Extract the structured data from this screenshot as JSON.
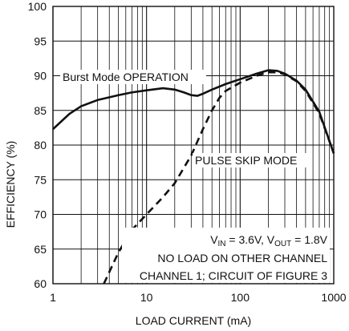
{
  "chart_data": {
    "type": "line",
    "xscale": "log",
    "xlim": [
      1,
      1000
    ],
    "ylim": [
      60,
      100
    ],
    "xticks": [
      "1",
      "10",
      "100",
      "1000"
    ],
    "yticks": [
      "60",
      "65",
      "70",
      "75",
      "80",
      "85",
      "90",
      "95",
      "100"
    ],
    "xlabel": "LOAD CURRENT (mA)",
    "ylabel": "EFFICIENCY (%)",
    "grid": true,
    "series": [
      {
        "name": "Burst Mode OPERATION",
        "style": "solid",
        "color": "#111111",
        "points": [
          [
            1,
            82.3
          ],
          [
            1.5,
            84.5
          ],
          [
            2,
            85.6
          ],
          [
            3,
            86.5
          ],
          [
            5,
            87.2
          ],
          [
            7,
            87.6
          ],
          [
            10,
            87.9
          ],
          [
            15,
            88.2
          ],
          [
            20,
            88.0
          ],
          [
            25,
            87.6
          ],
          [
            30,
            87.2
          ],
          [
            35,
            87.1
          ],
          [
            40,
            87.4
          ],
          [
            50,
            88.0
          ],
          [
            70,
            88.8
          ],
          [
            100,
            89.5
          ],
          [
            150,
            90.3
          ],
          [
            200,
            90.8
          ],
          [
            250,
            90.7
          ],
          [
            300,
            90.3
          ],
          [
            400,
            89.3
          ],
          [
            500,
            88.0
          ],
          [
            700,
            84.8
          ],
          [
            1000,
            78.8
          ]
        ]
      },
      {
        "name": "PULSE SKIP MODE",
        "style": "dashed",
        "color": "#111111",
        "points": [
          [
            3.5,
            60
          ],
          [
            5,
            64.5
          ],
          [
            7,
            67.8
          ],
          [
            10,
            70
          ],
          [
            15,
            72.5
          ],
          [
            20,
            74.5
          ],
          [
            30,
            78.5
          ],
          [
            40,
            82.3
          ],
          [
            50,
            85.0
          ],
          [
            60,
            86.8
          ],
          [
            70,
            87.8
          ],
          [
            100,
            89.0
          ],
          [
            150,
            90.0
          ],
          [
            200,
            90.5
          ],
          [
            250,
            90.5
          ],
          [
            300,
            90.2
          ],
          [
            400,
            89.2
          ],
          [
            500,
            87.8
          ],
          [
            700,
            84.6
          ],
          [
            1000,
            78.8
          ]
        ]
      }
    ],
    "annotations": {
      "conditions_line1": {
        "v_in_main": "V",
        "v_in_sub": "IN",
        "v_in_value": " = 3.6V, ",
        "v_out_main": "V",
        "v_out_sub": "OUT",
        "v_out_value": " = 1.8V"
      },
      "conditions_line2": "NO LOAD ON OTHER CHANNEL",
      "conditions_line3": "CHANNEL 1; CIRCUIT OF FIGURE 3"
    }
  }
}
